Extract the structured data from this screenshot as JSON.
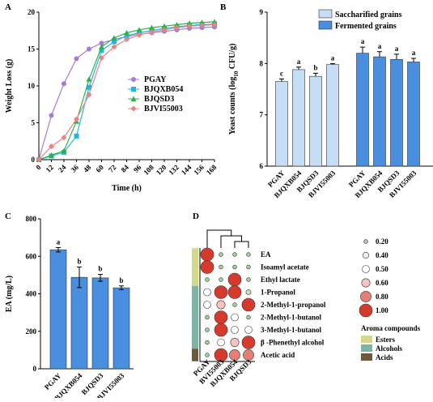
{
  "chart_data": [
    {
      "type": "line",
      "panel": "A",
      "x_label": "Time (h)",
      "y_label": "Weight Loss (g)",
      "x": [
        0,
        12,
        24,
        36,
        48,
        60,
        72,
        84,
        96,
        108,
        120,
        132,
        144,
        156,
        168
      ],
      "xlim": [
        0,
        168
      ],
      "xticks": [
        0,
        12,
        24,
        36,
        48,
        60,
        72,
        84,
        96,
        108,
        120,
        132,
        144,
        156,
        168
      ],
      "ylim": [
        0,
        20
      ],
      "yticks": [
        0,
        5,
        10,
        15,
        20
      ],
      "legend": "right",
      "series": [
        {
          "name": "PGAY",
          "color": "#a57bd6",
          "marker": "circle",
          "values": [
            0,
            6,
            10.3,
            13.7,
            15,
            15.8,
            16.3,
            16.7,
            17,
            17.2,
            17.4,
            17.6,
            17.8,
            17.9,
            18
          ]
        },
        {
          "name": "BJQXB054",
          "color": "#1fb5e8",
          "marker": "square",
          "values": [
            0,
            0.5,
            1,
            3.2,
            9.8,
            14.8,
            16,
            16.8,
            17.2,
            17.5,
            17.8,
            18,
            18.2,
            18.3,
            18.4
          ]
        },
        {
          "name": "BJQSD3",
          "color": "#2db24a",
          "marker": "triangle",
          "values": [
            0,
            0.6,
            1.2,
            5.2,
            10.9,
            15.3,
            16.5,
            17.2,
            17.6,
            17.9,
            18.1,
            18.3,
            18.5,
            18.6,
            18.7
          ]
        },
        {
          "name": "BJVI55003",
          "color": "#f08080",
          "marker": "diamond",
          "values": [
            0,
            1.8,
            3,
            5.5,
            8.8,
            13.8,
            15.3,
            16.3,
            16.9,
            17.3,
            17.6,
            17.9,
            18.1,
            18.2,
            18.3
          ]
        }
      ]
    },
    {
      "type": "grouped_bar",
      "panel": "B",
      "y_label": [
        "Yeast counts (log",
        "10",
        " CFU/g)"
      ],
      "categories": [
        "PGAY",
        "BJQXB054",
        "BJQSD3",
        "BJVI55003"
      ],
      "ylim": [
        6,
        9
      ],
      "yticks": [
        6,
        7,
        8,
        9
      ],
      "legend": "top-right",
      "series": [
        {
          "name": "Saccharified grains",
          "color": "#c6def5",
          "values": [
            7.65,
            7.88,
            7.75,
            7.98
          ],
          "errors": [
            0.05,
            0.05,
            0.06,
            0.02
          ],
          "letters": [
            "c",
            "a",
            "b",
            "a"
          ]
        },
        {
          "name": "Fermented grains",
          "color": "#4a8ee0",
          "values": [
            8.2,
            8.13,
            8.08,
            8.03
          ],
          "errors": [
            0.12,
            0.1,
            0.1,
            0.07
          ],
          "letters": [
            "a",
            "a",
            "a",
            "a"
          ]
        }
      ]
    },
    {
      "type": "bar",
      "panel": "C",
      "y_label": "EA (mg/L)",
      "categories": [
        "PGAY",
        "BJQXB054",
        "BJQSD3",
        "BJVI55003"
      ],
      "color": "#4a8ee0",
      "values": [
        635,
        488,
        485,
        432
      ],
      "errors": [
        12,
        55,
        18,
        10
      ],
      "letters": [
        "a",
        "b",
        "b",
        "b"
      ],
      "ylim": [
        0,
        800
      ],
      "yticks": [
        0,
        200,
        400,
        600,
        800
      ]
    },
    {
      "type": "bubble_matrix",
      "panel": "D",
      "columns": [
        "PGAY",
        "BVI55003",
        "BJQXB054",
        "BJQSD3"
      ],
      "rows": [
        "EA",
        "Isoamyl acetate",
        "Ethyl lactate",
        "1-Propanol",
        "2-Methyl-1-propanol",
        "2-Methyl-1-butanol",
        "3-Methyl-1-butanol",
        "β -Phenethyl alcohol",
        "Acetic acid"
      ],
      "values": [
        [
          1,
          0.2,
          0.2,
          0.2
        ],
        [
          1,
          0.2,
          0.2,
          0.2
        ],
        [
          0.2,
          0.2,
          1,
          0.2
        ],
        [
          0.5,
          1,
          1,
          0.3
        ],
        [
          0.5,
          0.6,
          0.2,
          1
        ],
        [
          0.2,
          1,
          0.5,
          0.2
        ],
        [
          0.2,
          1,
          0.5,
          0.5
        ],
        [
          0.2,
          0.5,
          0.6,
          1
        ],
        [
          0.2,
          1,
          0.8,
          0.8
        ]
      ],
      "size_legend": [
        {
          "value": 0.2,
          "label": "0.20"
        },
        {
          "value": 0.4,
          "label": "0.40"
        },
        {
          "value": 0.5,
          "label": "0.50"
        },
        {
          "value": 0.6,
          "label": "0.60"
        },
        {
          "value": 0.8,
          "label": "0.80"
        },
        {
          "value": 1,
          "label": "1.00"
        }
      ],
      "colors": [
        "#9fd49a",
        "#e4f2df",
        "#ffffff",
        "#f6c3c0",
        "#e57f75",
        "#d63a2c"
      ],
      "group_title": "Aroma compounds",
      "groups": [
        {
          "name": "Esters",
          "color": "#d4d98a",
          "size": 3
        },
        {
          "name": "Alcohols",
          "color": "#7ab5a5",
          "size": 5
        },
        {
          "name": "Acids",
          "color": "#6b5a3a",
          "size": 1
        }
      ]
    }
  ]
}
